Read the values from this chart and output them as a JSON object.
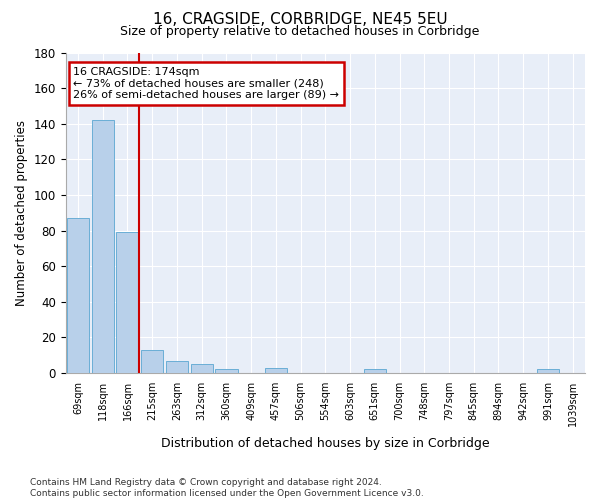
{
  "title": "16, CRAGSIDE, CORBRIDGE, NE45 5EU",
  "subtitle": "Size of property relative to detached houses in Corbridge",
  "xlabel": "Distribution of detached houses by size in Corbridge",
  "ylabel": "Number of detached properties",
  "bar_color": "#b8d0ea",
  "bar_edge_color": "#6aaed6",
  "background_color": "#e8eef8",
  "grid_color": "#ffffff",
  "categories": [
    "69sqm",
    "118sqm",
    "166sqm",
    "215sqm",
    "263sqm",
    "312sqm",
    "360sqm",
    "409sqm",
    "457sqm",
    "506sqm",
    "554sqm",
    "603sqm",
    "651sqm",
    "700sqm",
    "748sqm",
    "797sqm",
    "845sqm",
    "894sqm",
    "942sqm",
    "991sqm",
    "1039sqm"
  ],
  "values": [
    87,
    142,
    79,
    13,
    7,
    5,
    2,
    0,
    3,
    0,
    0,
    0,
    2,
    0,
    0,
    0,
    0,
    0,
    0,
    2,
    0
  ],
  "ylim": [
    0,
    180
  ],
  "yticks": [
    0,
    20,
    40,
    60,
    80,
    100,
    120,
    140,
    160,
    180
  ],
  "property_line_x": 2,
  "annotation_text": "16 CRAGSIDE: 174sqm\n← 73% of detached houses are smaller (248)\n26% of semi-detached houses are larger (89) →",
  "annotation_box_color": "#ffffff",
  "annotation_box_edge": "#cc0000",
  "vline_color": "#cc0000",
  "footer_line1": "Contains HM Land Registry data © Crown copyright and database right 2024.",
  "footer_line2": "Contains public sector information licensed under the Open Government Licence v3.0."
}
